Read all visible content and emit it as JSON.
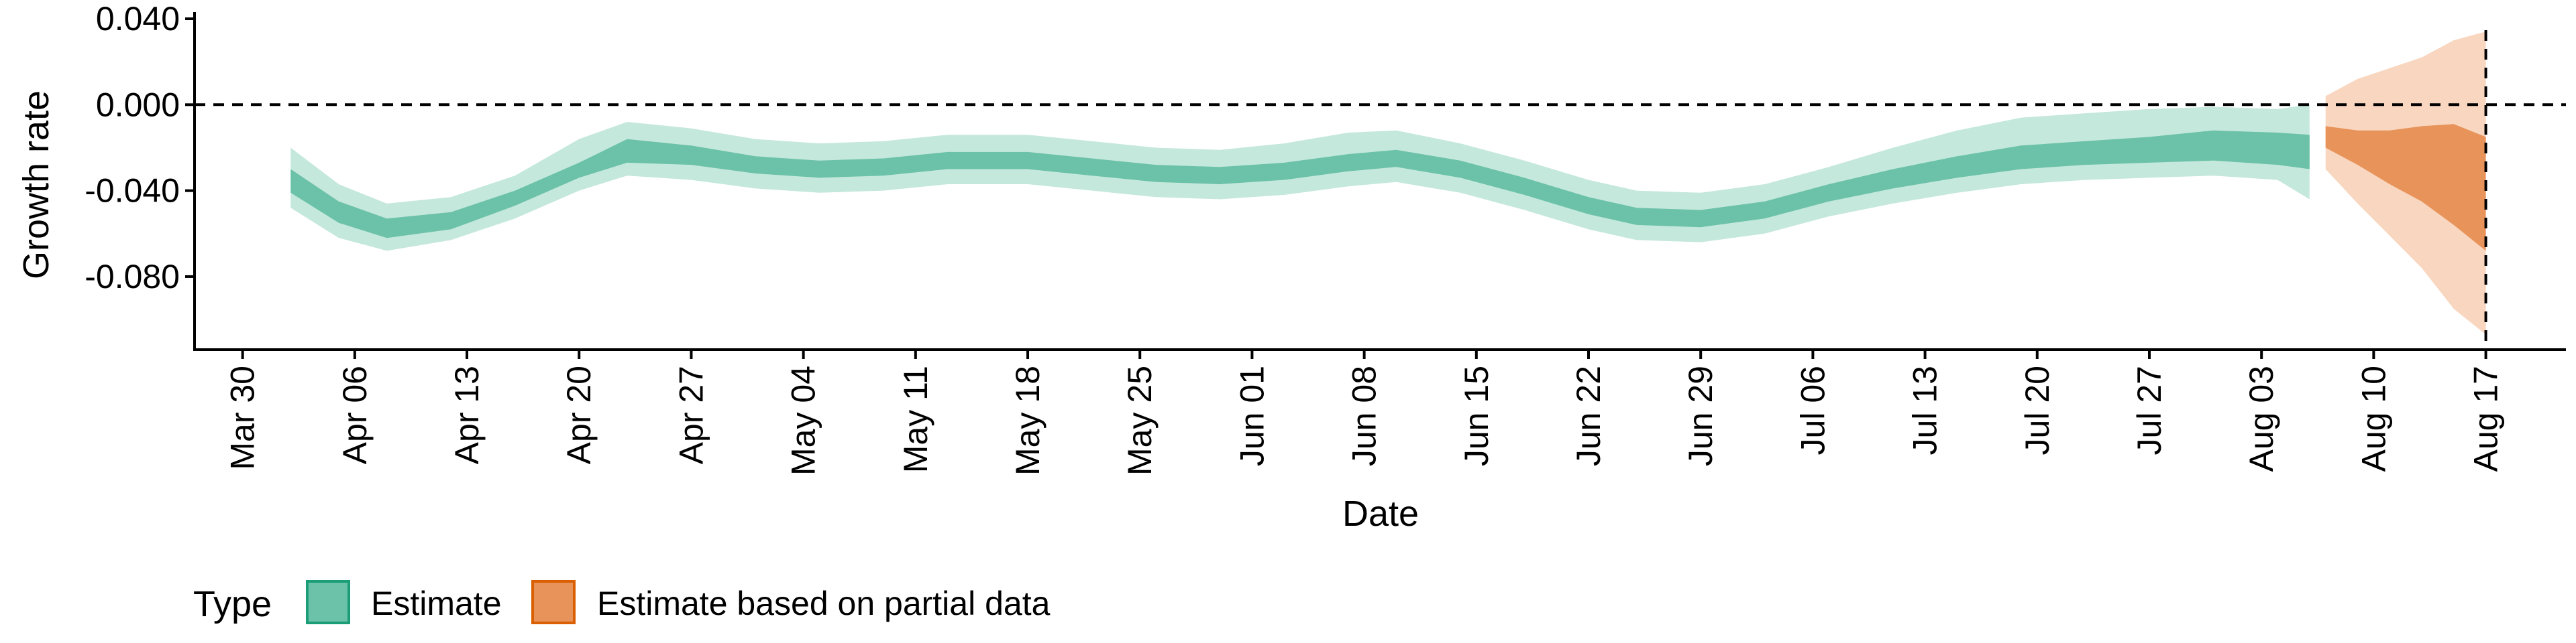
{
  "chart_data": {
    "type": "area",
    "xlabel": "Date",
    "ylabel": "Growth rate",
    "x_ticks": [
      "Mar 30",
      "Apr 06",
      "Apr 13",
      "Apr 20",
      "Apr 27",
      "May 04",
      "May 11",
      "May 18",
      "May 25",
      "Jun 01",
      "Jun 08",
      "Jun 15",
      "Jun 22",
      "Jun 29",
      "Jul 06",
      "Jul 13",
      "Jul 20",
      "Jul 27",
      "Aug 03",
      "Aug 10",
      "Aug 17"
    ],
    "y_ticks": [
      "0.040",
      "0.000",
      "-0.040",
      "-0.080"
    ],
    "xlim": [
      "2020-03-27",
      "2020-08-22"
    ],
    "ylim": [
      -0.114,
      0.04
    ],
    "reference_hline": 0.0,
    "reference_vline": "2020-08-17",
    "legend": {
      "title": "Type",
      "position": "bottom-left",
      "entries": [
        {
          "label": "Estimate",
          "color": "#6cc2a8"
        },
        {
          "label": "Estimate based on partial data",
          "color": "#e8935a"
        }
      ]
    },
    "colors": {
      "estimate_inner": "#6cc2a8",
      "estimate_outer": "#c5e8dc",
      "partial_inner": "#e8935a",
      "partial_outer": "#f8d6bf"
    },
    "series": [
      {
        "name": "Estimate",
        "x": [
          "2020-04-02",
          "2020-04-05",
          "2020-04-08",
          "2020-04-12",
          "2020-04-16",
          "2020-04-20",
          "2020-04-23",
          "2020-04-27",
          "2020-05-01",
          "2020-05-05",
          "2020-05-09",
          "2020-05-13",
          "2020-05-18",
          "2020-05-22",
          "2020-05-26",
          "2020-05-30",
          "2020-06-03",
          "2020-06-07",
          "2020-06-10",
          "2020-06-14",
          "2020-06-18",
          "2020-06-22",
          "2020-06-25",
          "2020-06-29",
          "2020-07-03",
          "2020-07-07",
          "2020-07-11",
          "2020-07-15",
          "2020-07-19",
          "2020-07-23",
          "2020-07-27",
          "2020-07-31",
          "2020-08-04",
          "2020-08-06"
        ],
        "outer_lower": [
          -0.048,
          -0.062,
          -0.068,
          -0.063,
          -0.053,
          -0.04,
          -0.033,
          -0.035,
          -0.039,
          -0.041,
          -0.04,
          -0.037,
          -0.037,
          -0.04,
          -0.043,
          -0.044,
          -0.042,
          -0.038,
          -0.036,
          -0.041,
          -0.049,
          -0.058,
          -0.063,
          -0.064,
          -0.06,
          -0.052,
          -0.046,
          -0.041,
          -0.037,
          -0.035,
          -0.034,
          -0.033,
          -0.035,
          -0.044
        ],
        "inner_lower": [
          -0.041,
          -0.055,
          -0.062,
          -0.058,
          -0.047,
          -0.034,
          -0.027,
          -0.028,
          -0.032,
          -0.034,
          -0.033,
          -0.03,
          -0.03,
          -0.033,
          -0.036,
          -0.037,
          -0.035,
          -0.031,
          -0.029,
          -0.034,
          -0.042,
          -0.051,
          -0.056,
          -0.057,
          -0.053,
          -0.045,
          -0.039,
          -0.034,
          -0.03,
          -0.028,
          -0.027,
          -0.026,
          -0.028,
          -0.03
        ],
        "inner_upper": [
          -0.03,
          -0.045,
          -0.053,
          -0.05,
          -0.04,
          -0.027,
          -0.016,
          -0.019,
          -0.024,
          -0.026,
          -0.025,
          -0.022,
          -0.022,
          -0.025,
          -0.028,
          -0.029,
          -0.027,
          -0.023,
          -0.021,
          -0.026,
          -0.034,
          -0.043,
          -0.048,
          -0.049,
          -0.045,
          -0.037,
          -0.03,
          -0.024,
          -0.019,
          -0.017,
          -0.015,
          -0.012,
          -0.013,
          -0.014
        ],
        "outer_upper": [
          -0.02,
          -0.037,
          -0.046,
          -0.043,
          -0.033,
          -0.016,
          -0.008,
          -0.011,
          -0.016,
          -0.018,
          -0.017,
          -0.014,
          -0.014,
          -0.017,
          -0.02,
          -0.021,
          -0.018,
          -0.013,
          -0.012,
          -0.018,
          -0.026,
          -0.035,
          -0.04,
          -0.041,
          -0.037,
          -0.029,
          -0.02,
          -0.012,
          -0.006,
          -0.004,
          -0.002,
          -0.001,
          -0.002,
          0.0
        ]
      },
      {
        "name": "Estimate based on partial data",
        "x": [
          "2020-08-07",
          "2020-08-09",
          "2020-08-11",
          "2020-08-13",
          "2020-08-15",
          "2020-08-17"
        ],
        "outer_lower": [
          -0.03,
          -0.046,
          -0.061,
          -0.076,
          -0.095,
          -0.107
        ],
        "inner_lower": [
          -0.02,
          -0.028,
          -0.037,
          -0.045,
          -0.056,
          -0.068
        ],
        "inner_upper": [
          -0.01,
          -0.012,
          -0.012,
          -0.01,
          -0.009,
          -0.015
        ],
        "outer_upper": [
          0.004,
          0.012,
          0.017,
          0.022,
          0.03,
          0.034
        ]
      }
    ]
  }
}
